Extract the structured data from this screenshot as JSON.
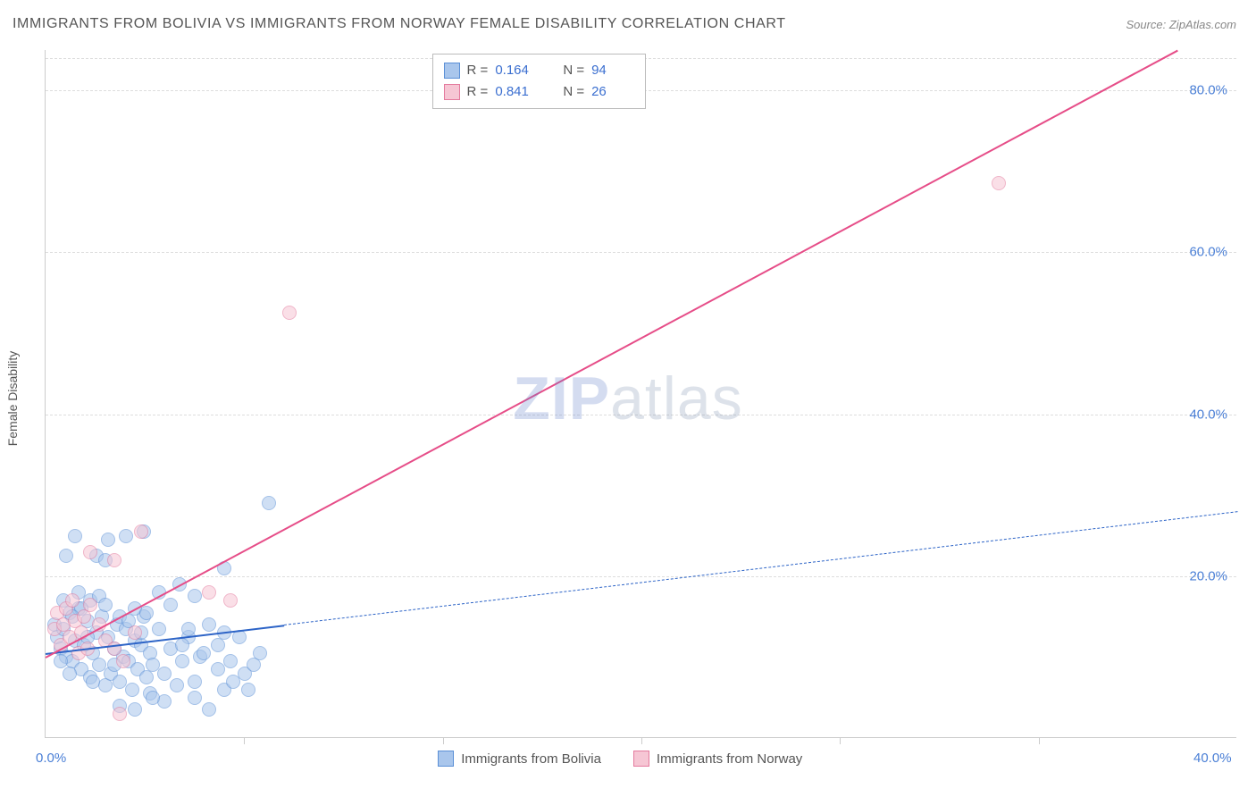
{
  "title": "IMMIGRANTS FROM BOLIVIA VS IMMIGRANTS FROM NORWAY FEMALE DISABILITY CORRELATION CHART",
  "source_label": "Source: ZipAtlas.com",
  "y_axis_title": "Female Disability",
  "watermark_bold": "ZIP",
  "watermark_light": "atlas",
  "chart": {
    "type": "scatter",
    "xlim": [
      0,
      40
    ],
    "ylim": [
      0,
      85
    ],
    "x_ticks": [
      0,
      40
    ],
    "x_tick_labels": [
      "0.0%",
      "40.0%"
    ],
    "x_minor_ticks": [
      6.67,
      13.33,
      20,
      26.67,
      33.33
    ],
    "y_ticks": [
      20,
      40,
      60,
      80
    ],
    "y_tick_labels": [
      "20.0%",
      "40.0%",
      "60.0%",
      "80.0%"
    ],
    "background_color": "#ffffff",
    "grid_color": "#dddddd",
    "axis_color": "#cccccc",
    "point_radius": 8,
    "series": [
      {
        "name": "Immigrants from Bolivia",
        "fill_color": "#a9c6ec",
        "stroke_color": "#5a8fd6",
        "fill_opacity": 0.55,
        "R": "0.164",
        "N": "94",
        "trend": {
          "x1": 0,
          "y1": 10.5,
          "x2": 40,
          "y2": 28,
          "solid_until_x": 8,
          "color": "#2d64c7",
          "width": 2.2
        },
        "points": [
          [
            0.3,
            14
          ],
          [
            0.4,
            12.5
          ],
          [
            0.5,
            11
          ],
          [
            0.6,
            13.5
          ],
          [
            0.7,
            10
          ],
          [
            0.8,
            15.5
          ],
          [
            0.9,
            9.5
          ],
          [
            1.0,
            12
          ],
          [
            1.1,
            16
          ],
          [
            1.2,
            8.5
          ],
          [
            1.3,
            11.5
          ],
          [
            1.4,
            14.5
          ],
          [
            1.5,
            7.5
          ],
          [
            1.6,
            10.5
          ],
          [
            1.7,
            13
          ],
          [
            1.8,
            9
          ],
          [
            1.9,
            15
          ],
          [
            2.0,
            6.5
          ],
          [
            2.1,
            12.5
          ],
          [
            2.2,
            8
          ],
          [
            2.3,
            11
          ],
          [
            2.4,
            14
          ],
          [
            2.5,
            7
          ],
          [
            2.6,
            10
          ],
          [
            2.7,
            13.5
          ],
          [
            2.8,
            9.5
          ],
          [
            2.9,
            6
          ],
          [
            3.0,
            12
          ],
          [
            3.1,
            8.5
          ],
          [
            3.2,
            11.5
          ],
          [
            3.3,
            15
          ],
          [
            3.4,
            7.5
          ],
          [
            3.5,
            10.5
          ],
          [
            3.6,
            9
          ],
          [
            3.8,
            13.5
          ],
          [
            4.0,
            8
          ],
          [
            4.2,
            11
          ],
          [
            4.4,
            6.5
          ],
          [
            4.6,
            9.5
          ],
          [
            4.8,
            12.5
          ],
          [
            5.0,
            7
          ],
          [
            5.2,
            10
          ],
          [
            5.5,
            14
          ],
          [
            5.8,
            8.5
          ],
          [
            6.0,
            6
          ],
          [
            1.0,
            25
          ],
          [
            2.1,
            24.5
          ],
          [
            2.7,
            25
          ],
          [
            3.3,
            25.5
          ],
          [
            0.7,
            22.5
          ],
          [
            1.7,
            22.5
          ],
          [
            2.0,
            22
          ],
          [
            6.0,
            21
          ],
          [
            4.5,
            19
          ],
          [
            3.8,
            18
          ],
          [
            5.0,
            17.5
          ],
          [
            1.1,
            18
          ],
          [
            1.5,
            17
          ],
          [
            1.8,
            17.5
          ],
          [
            4.2,
            16.5
          ],
          [
            3.0,
            16
          ],
          [
            4.8,
            13.5
          ],
          [
            7.5,
            29
          ],
          [
            6.7,
            8
          ],
          [
            7.0,
            9
          ],
          [
            6.5,
            12.5
          ],
          [
            7.2,
            10.5
          ],
          [
            6.0,
            13
          ],
          [
            5.5,
            3.5
          ],
          [
            5.0,
            5
          ],
          [
            4.0,
            4.5
          ],
          [
            3.5,
            5.5
          ],
          [
            6.3,
            7
          ],
          [
            6.8,
            6
          ],
          [
            2.5,
            4
          ],
          [
            3.0,
            3.5
          ],
          [
            3.6,
            5
          ],
          [
            3.4,
            15.5
          ],
          [
            2.0,
            16.5
          ],
          [
            2.5,
            15
          ],
          [
            1.2,
            16
          ],
          [
            0.6,
            17
          ],
          [
            0.9,
            15
          ],
          [
            1.4,
            12.5
          ],
          [
            2.8,
            14.5
          ],
          [
            3.2,
            13
          ],
          [
            4.6,
            11.5
          ],
          [
            5.3,
            10.5
          ],
          [
            5.8,
            11.5
          ],
          [
            6.2,
            9.5
          ],
          [
            2.3,
            9
          ],
          [
            1.6,
            7
          ],
          [
            0.8,
            8
          ],
          [
            0.5,
            9.5
          ]
        ]
      },
      {
        "name": "Immigrants from Norway",
        "fill_color": "#f6c6d4",
        "stroke_color": "#e47a9d",
        "fill_opacity": 0.55,
        "R": "0.841",
        "N": "26",
        "trend": {
          "x1": 0,
          "y1": 10,
          "x2": 38,
          "y2": 85,
          "solid_until_x": 38,
          "color": "#e64d88",
          "width": 2.4
        },
        "points": [
          [
            0.3,
            13.5
          ],
          [
            0.4,
            15.5
          ],
          [
            0.5,
            11.5
          ],
          [
            0.6,
            14
          ],
          [
            0.7,
            16
          ],
          [
            0.8,
            12.5
          ],
          [
            0.9,
            17
          ],
          [
            1.0,
            14.5
          ],
          [
            1.1,
            10.5
          ],
          [
            1.2,
            13
          ],
          [
            1.3,
            15
          ],
          [
            1.4,
            11
          ],
          [
            1.5,
            16.5
          ],
          [
            1.8,
            14
          ],
          [
            2.0,
            12
          ],
          [
            2.3,
            11
          ],
          [
            2.6,
            9.5
          ],
          [
            3.0,
            13
          ],
          [
            1.5,
            23
          ],
          [
            2.3,
            22
          ],
          [
            3.2,
            25.5
          ],
          [
            5.5,
            18
          ],
          [
            6.2,
            17
          ],
          [
            2.5,
            3
          ],
          [
            8.2,
            52.5
          ],
          [
            32,
            68.5
          ]
        ]
      }
    ]
  },
  "top_legend": {
    "R_label": "R =",
    "N_label": "N ="
  },
  "bottom_legend_items": [
    "Immigrants from Bolivia",
    "Immigrants from Norway"
  ]
}
